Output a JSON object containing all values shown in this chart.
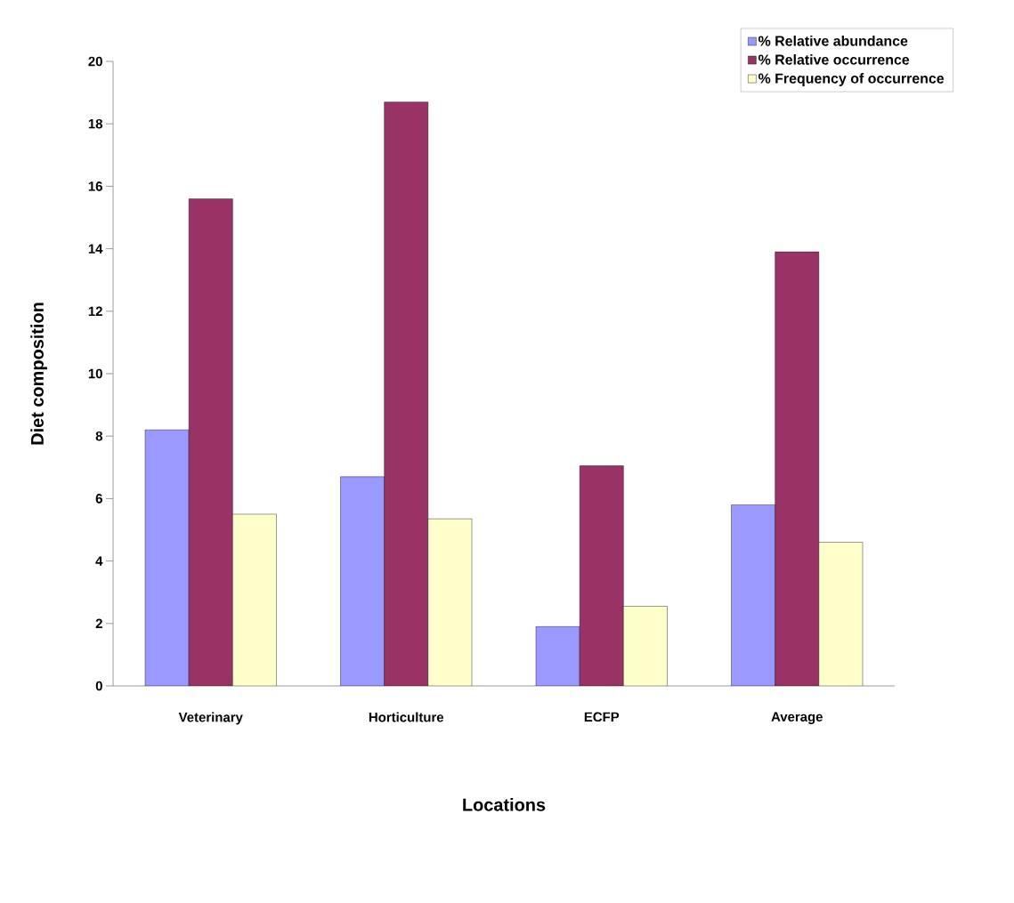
{
  "chart_data": {
    "type": "bar",
    "xlabel": "Locations",
    "ylabel": "Diet composition",
    "categories": [
      "Veterinary",
      "Horticulture",
      "ECFP",
      "Average"
    ],
    "series": [
      {
        "name": "% Relative abundance",
        "color": "#9999ff",
        "values": [
          8.2,
          6.7,
          1.9,
          5.8
        ]
      },
      {
        "name": "%  Relative occurrence",
        "color": "#993366",
        "values": [
          15.6,
          18.7,
          7.05,
          13.9
        ]
      },
      {
        "name": "% Frequency of occurrence",
        "color": "#ffffcc",
        "values": [
          5.5,
          5.35,
          2.55,
          4.6
        ]
      }
    ],
    "ylim": [
      0,
      20
    ],
    "yticks": [
      0,
      2,
      4,
      6,
      8,
      10,
      12,
      14,
      16,
      18,
      20
    ],
    "legend": "top right"
  }
}
